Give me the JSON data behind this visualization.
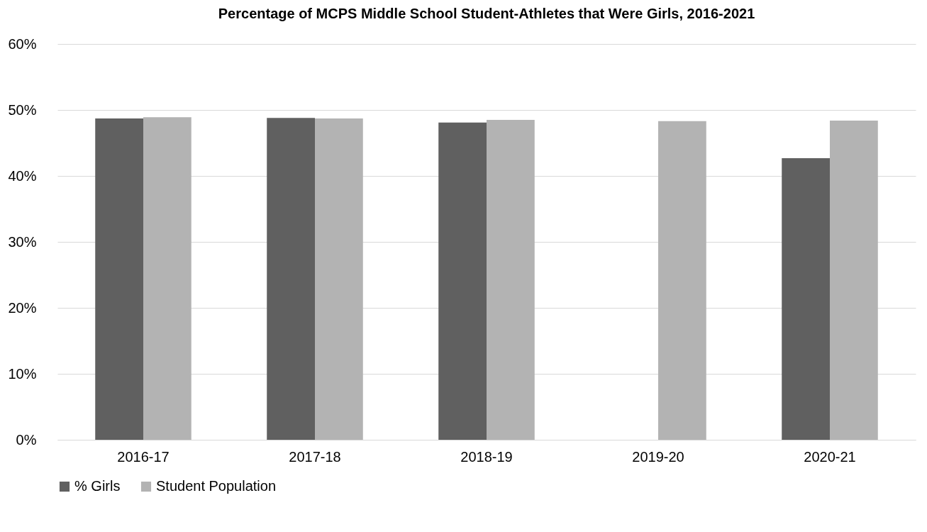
{
  "chart_data": {
    "type": "bar",
    "title": "Percentage of MCPS Middle School Student-Athletes that Were Girls, 2016-2021",
    "categories": [
      "2016-17",
      "2017-18",
      "2018-19",
      "2019-20",
      "2020-21"
    ],
    "series": [
      {
        "name": "% Girls",
        "color": "#606060",
        "values": [
          48.7,
          48.8,
          48.1,
          null,
          42.7
        ]
      },
      {
        "name": "Student Population",
        "color": "#b3b3b3",
        "values": [
          48.9,
          48.7,
          48.5,
          48.3,
          48.4
        ]
      }
    ],
    "ylim": [
      0,
      60
    ],
    "yticks": [
      {
        "value": 0,
        "label": "0%"
      },
      {
        "value": 10,
        "label": "10%"
      },
      {
        "value": 20,
        "label": "20%"
      },
      {
        "value": 30,
        "label": "30%"
      },
      {
        "value": 40,
        "label": "40%"
      },
      {
        "value": 50,
        "label": "50%"
      },
      {
        "value": 60,
        "label": "60%"
      }
    ],
    "grid": "y",
    "legend": "bottom"
  }
}
